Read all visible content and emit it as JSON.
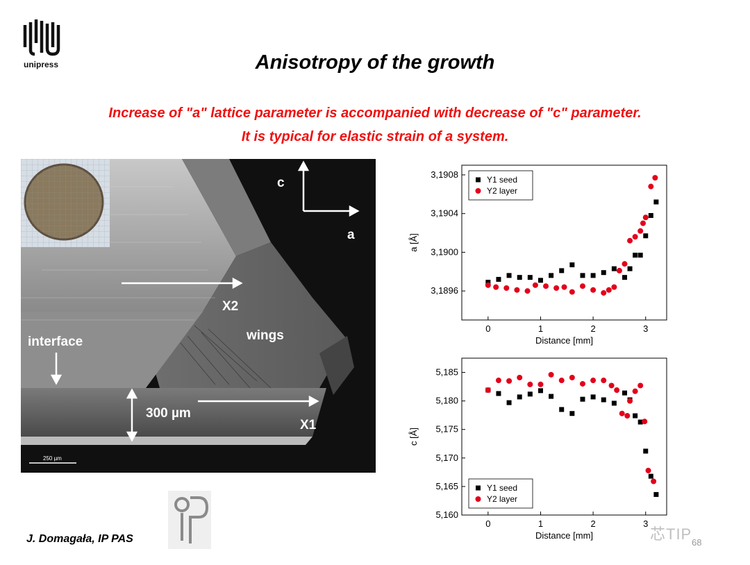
{
  "logo": {
    "text": "unipress"
  },
  "slide": {
    "title": "Anisotropy of the growth",
    "subtitle_line1": "Increase of \"a\" lattice parameter is accompanied with decrease of \"c\" parameter.",
    "subtitle_line2": "It is typical for elastic strain of a system.",
    "author": "J. Domagała, IP PAS",
    "page_number": "68",
    "watermark": "芯TIP"
  },
  "micrograph": {
    "axis_c": "c",
    "axis_a": "a",
    "label_x2": "X2",
    "label_x1": "X1",
    "label_wings": "wings",
    "label_interface": "interface",
    "label_thickness": "300 µm",
    "scale_bar": "250 µm"
  },
  "chart_data": [
    {
      "type": "scatter",
      "xlabel": "Distance [mm]",
      "ylabel": "a [Å]",
      "xlim": [
        -0.5,
        3.4
      ],
      "ylim": [
        3.1893,
        3.1909
      ],
      "xticks": [
        "0",
        "1",
        "2",
        "3"
      ],
      "yticks": [
        "3,1896",
        "3,1900",
        "3,1904",
        "3,1908"
      ],
      "legend": "top-left",
      "series": [
        {
          "name": "Y1 seed",
          "marker": "square",
          "color": "#000000",
          "points": [
            [
              0.0,
              3.18969
            ],
            [
              0.2,
              3.18972
            ],
            [
              0.4,
              3.18976
            ],
            [
              0.6,
              3.18974
            ],
            [
              0.8,
              3.18974
            ],
            [
              1.0,
              3.18971
            ],
            [
              1.2,
              3.18976
            ],
            [
              1.4,
              3.18981
            ],
            [
              1.6,
              3.18987
            ],
            [
              1.8,
              3.18976
            ],
            [
              2.0,
              3.18976
            ],
            [
              2.2,
              3.18979
            ],
            [
              2.4,
              3.18983
            ],
            [
              2.6,
              3.18974
            ],
            [
              2.7,
              3.18983
            ],
            [
              2.8,
              3.18997
            ],
            [
              2.9,
              3.18997
            ],
            [
              3.0,
              3.19017
            ],
            [
              3.1,
              3.19038
            ],
            [
              3.2,
              3.19052
            ]
          ]
        },
        {
          "name": "Y2 layer",
          "marker": "circle",
          "color": "#e3001b",
          "points": [
            [
              0.0,
              3.18966
            ],
            [
              0.15,
              3.18964
            ],
            [
              0.35,
              3.18963
            ],
            [
              0.55,
              3.18961
            ],
            [
              0.75,
              3.1896
            ],
            [
              0.9,
              3.18966
            ],
            [
              1.1,
              3.18965
            ],
            [
              1.3,
              3.18963
            ],
            [
              1.45,
              3.18964
            ],
            [
              1.6,
              3.18959
            ],
            [
              1.8,
              3.18965
            ],
            [
              2.0,
              3.18961
            ],
            [
              2.2,
              3.18958
            ],
            [
              2.3,
              3.18961
            ],
            [
              2.4,
              3.18964
            ],
            [
              2.5,
              3.18981
            ],
            [
              2.6,
              3.18988
            ],
            [
              2.7,
              3.19012
            ],
            [
              2.8,
              3.19016
            ],
            [
              2.9,
              3.19022
            ],
            [
              2.95,
              3.1903
            ],
            [
              3.0,
              3.19036
            ],
            [
              3.1,
              3.19068
            ],
            [
              3.18,
              3.19077
            ]
          ]
        }
      ]
    },
    {
      "type": "scatter",
      "xlabel": "Distance [mm]",
      "ylabel": "c [Å]",
      "xlim": [
        -0.5,
        3.4
      ],
      "ylim": [
        5.16,
        5.1875
      ],
      "xticks": [
        "0",
        "1",
        "2",
        "3"
      ],
      "yticks": [
        "5,160",
        "5,165",
        "5,170",
        "5,175",
        "5,180",
        "5,185"
      ],
      "legend": "bottom-left",
      "series": [
        {
          "name": "Y1 seed",
          "marker": "square",
          "color": "#000000",
          "points": [
            [
              0.0,
              5.1819
            ],
            [
              0.2,
              5.1813
            ],
            [
              0.4,
              5.1797
            ],
            [
              0.6,
              5.1807
            ],
            [
              0.8,
              5.1812
            ],
            [
              1.0,
              5.1818
            ],
            [
              1.2,
              5.1808
            ],
            [
              1.4,
              5.1785
            ],
            [
              1.6,
              5.1778
            ],
            [
              1.8,
              5.1803
            ],
            [
              2.0,
              5.1807
            ],
            [
              2.2,
              5.1802
            ],
            [
              2.4,
              5.1796
            ],
            [
              2.6,
              5.1814
            ],
            [
              2.7,
              5.1802
            ],
            [
              2.8,
              5.1774
            ],
            [
              2.9,
              5.1763
            ],
            [
              3.0,
              5.1712
            ],
            [
              3.1,
              5.1668
            ],
            [
              3.2,
              5.1636
            ]
          ]
        },
        {
          "name": "Y2 layer",
          "marker": "circle",
          "color": "#e3001b",
          "points": [
            [
              0.0,
              5.1819
            ],
            [
              0.2,
              5.1836
            ],
            [
              0.4,
              5.1835
            ],
            [
              0.6,
              5.1841
            ],
            [
              0.8,
              5.1829
            ],
            [
              1.0,
              5.1829
            ],
            [
              1.2,
              5.1846
            ],
            [
              1.4,
              5.1836
            ],
            [
              1.6,
              5.1841
            ],
            [
              1.8,
              5.183
            ],
            [
              2.0,
              5.1836
            ],
            [
              2.2,
              5.1836
            ],
            [
              2.35,
              5.1827
            ],
            [
              2.45,
              5.1819
            ],
            [
              2.55,
              5.1778
            ],
            [
              2.65,
              5.1774
            ],
            [
              2.7,
              5.18
            ],
            [
              2.8,
              5.1817
            ],
            [
              2.9,
              5.1827
            ],
            [
              2.98,
              5.1764
            ],
            [
              3.05,
              5.1678
            ],
            [
              3.15,
              5.1659
            ]
          ]
        }
      ]
    }
  ]
}
